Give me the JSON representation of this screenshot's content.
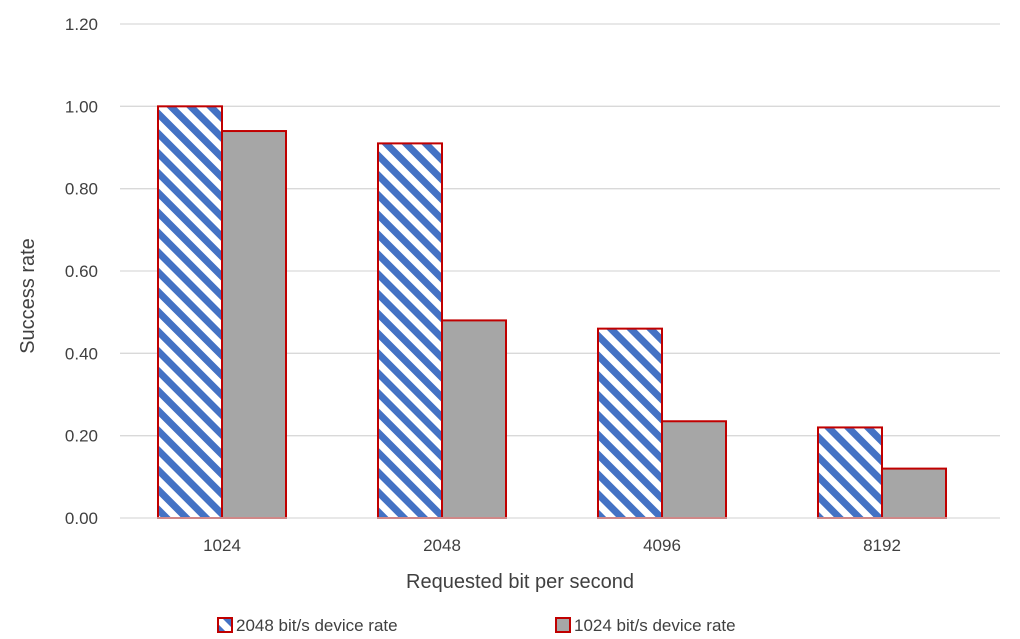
{
  "chart_data": {
    "type": "bar",
    "categories": [
      "1024",
      "2048",
      "4096",
      "8192"
    ],
    "series": [
      {
        "name": "2048 bit/s device rate",
        "values": [
          1.0,
          0.91,
          0.46,
          0.22
        ],
        "fill": "hatched-blue",
        "stroke": "#c00000"
      },
      {
        "name": "1024 bit/s device rate",
        "values": [
          0.94,
          0.48,
          0.235,
          0.12
        ],
        "fill": "#a6a6a6",
        "stroke": "#c00000"
      }
    ],
    "xlabel": "Requested bit per second",
    "ylabel": "Success rate",
    "ylim": [
      0,
      1.2
    ],
    "yticks": [
      "0.00",
      "0.20",
      "0.40",
      "0.60",
      "0.80",
      "1.00",
      "1.20"
    ],
    "grid": true,
    "legend": "bottom",
    "colors": {
      "hatch_blue": "#4472c4",
      "bar_gray": "#a6a6a6",
      "bar_outline": "#c00000",
      "gridline": "#d9d9d9",
      "text": "#404040"
    }
  }
}
